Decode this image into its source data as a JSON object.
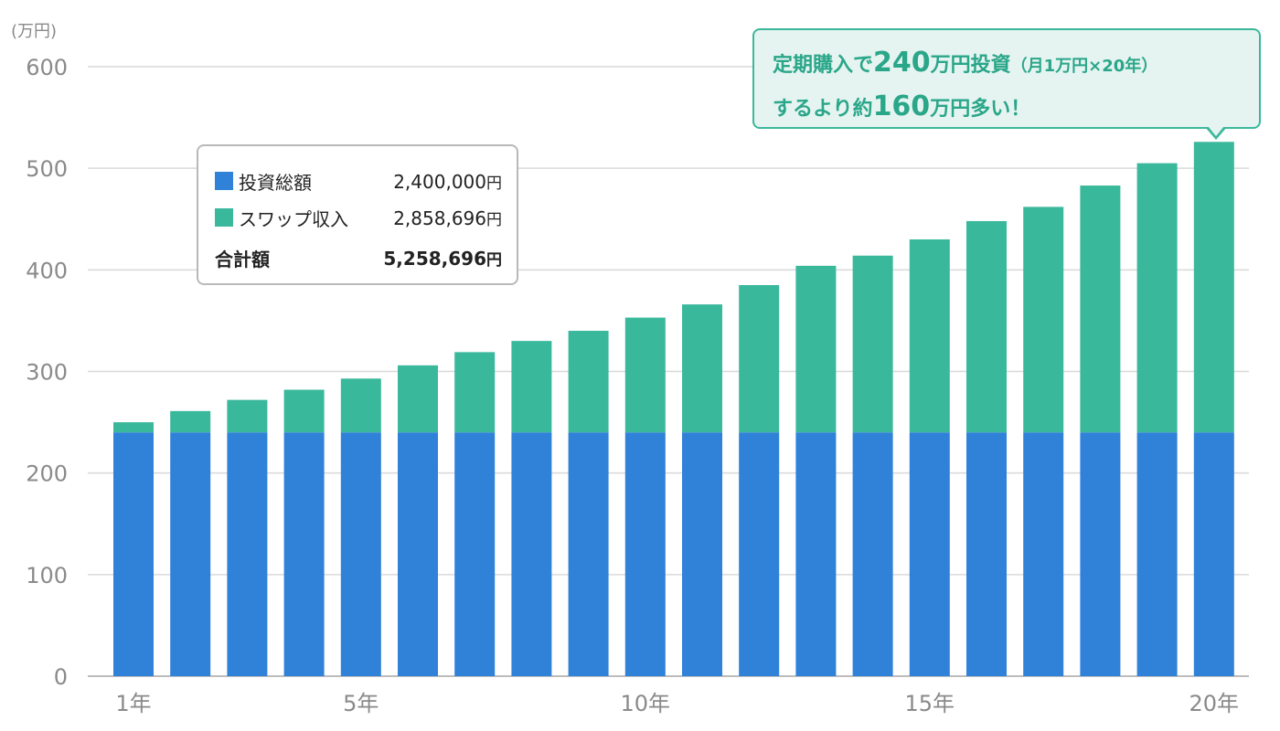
{
  "chart_data": {
    "type": "bar",
    "stacked": true,
    "y_unit_label": "(万円)",
    "categories": [
      "1年",
      "2年",
      "3年",
      "4年",
      "5年",
      "6年",
      "7年",
      "8年",
      "9年",
      "10年",
      "11年",
      "12年",
      "13年",
      "14年",
      "15年",
      "16年",
      "17年",
      "18年",
      "19年",
      "20年"
    ],
    "visible_x_ticks": [
      "1年",
      "5年",
      "10年",
      "15年",
      "20年"
    ],
    "ylim": [
      0,
      600
    ],
    "yticks": [
      0,
      100,
      200,
      300,
      400,
      500,
      600
    ],
    "grid": true,
    "series": [
      {
        "name": "投資総額",
        "color": "#2f82d8",
        "values": [
          240,
          240,
          240,
          240,
          240,
          240,
          240,
          240,
          240,
          240,
          240,
          240,
          240,
          240,
          240,
          240,
          240,
          240,
          240,
          240
        ]
      },
      {
        "name": "スワップ収入",
        "color": "#3ab89b",
        "values": [
          10,
          21,
          32,
          42,
          53,
          66,
          79,
          90,
          100,
          113,
          126,
          145,
          164,
          174,
          190,
          208,
          222,
          243,
          265,
          286
        ]
      }
    ],
    "legend_placement": "top-left",
    "legend": {
      "rows": [
        {
          "name": "投資総額",
          "value": "2,400,000",
          "unit": "円",
          "color": "#2f82d8"
        },
        {
          "name": "スワップ収入",
          "value": "2,858,696",
          "unit": "円",
          "color": "#3ab89b"
        }
      ],
      "total": {
        "name": "合計額",
        "value": "5,258,696",
        "unit": "円"
      }
    },
    "annotation": {
      "line1_a": "定期購入で",
      "line1_big": "240",
      "line1_b": "万円投資",
      "line1_small": "（月1万円×20年）",
      "line2_a": "するより約",
      "line2_big": "160",
      "line2_b": "万円多い！"
    }
  }
}
